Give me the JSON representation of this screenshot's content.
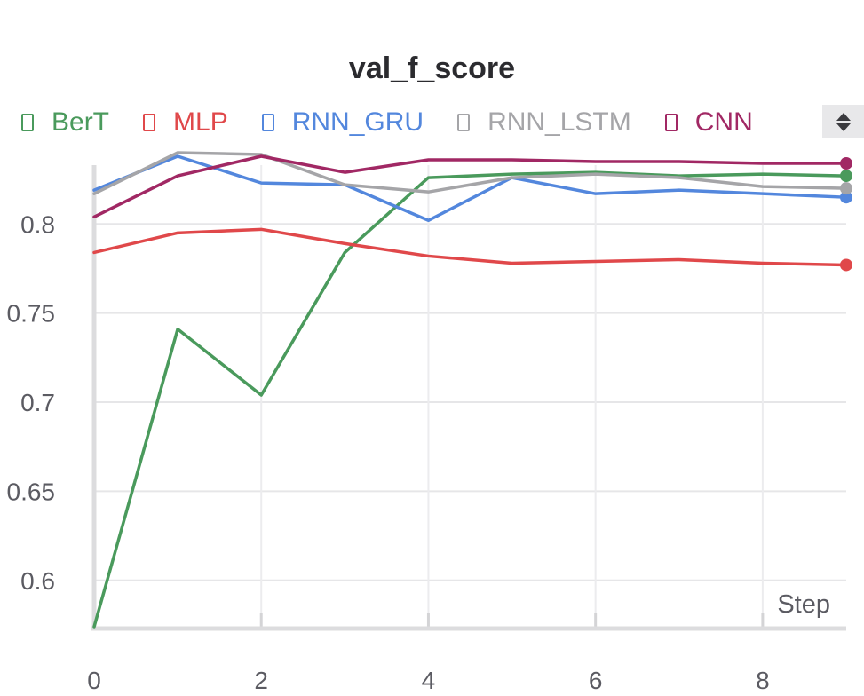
{
  "chart_data": {
    "type": "line",
    "title": "val_f_score",
    "xlabel": "Step",
    "ylabel": "",
    "x": [
      0,
      1,
      2,
      3,
      4,
      5,
      6,
      7,
      8,
      9
    ],
    "xlim": [
      0,
      9
    ],
    "ylim": [
      0.574,
      0.84
    ],
    "xticks": [
      0,
      2,
      4,
      6,
      8
    ],
    "xtick_labels": [
      "0",
      "2",
      "4",
      "6",
      "8"
    ],
    "yticks": [
      0.6,
      0.65,
      0.7,
      0.75,
      0.8
    ],
    "ytick_labels": [
      "0.6",
      "0.65",
      "0.7",
      "0.75",
      "0.8"
    ],
    "grid": true,
    "legend_position": "top",
    "series": [
      {
        "name": "BerT",
        "color": "#4a9a5c",
        "values": [
          0.574,
          0.741,
          0.704,
          0.784,
          0.826,
          0.828,
          0.829,
          0.827,
          0.828,
          0.827
        ]
      },
      {
        "name": "MLP",
        "color": "#e0484a",
        "values": [
          0.784,
          0.795,
          0.797,
          0.789,
          0.782,
          0.778,
          0.779,
          0.78,
          0.778,
          0.777
        ]
      },
      {
        "name": "RNN_GRU",
        "color": "#5387dd",
        "values": [
          0.819,
          0.838,
          0.823,
          0.822,
          0.802,
          0.826,
          0.817,
          0.819,
          0.817,
          0.815
        ]
      },
      {
        "name": "RNN_LSTM",
        "color": "#a5a5a8",
        "values": [
          0.817,
          0.84,
          0.839,
          0.822,
          0.818,
          0.826,
          0.828,
          0.826,
          0.821,
          0.82
        ]
      },
      {
        "name": "CNN",
        "color": "#a12864",
        "values": [
          0.804,
          0.827,
          0.838,
          0.829,
          0.836,
          0.836,
          0.835,
          0.835,
          0.834,
          0.834
        ]
      }
    ]
  },
  "legend": {
    "scroll_icon": "updown-arrows-icon"
  }
}
